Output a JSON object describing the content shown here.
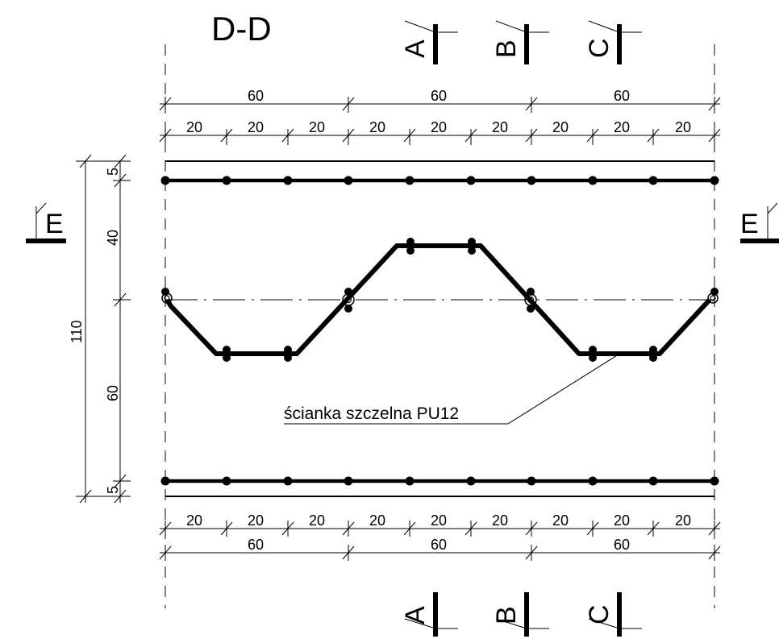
{
  "title": "D-D",
  "section_markers": {
    "top": [
      "A",
      "B",
      "C"
    ],
    "bottom": [
      "A",
      "B",
      "C"
    ],
    "left": "E",
    "right": "E"
  },
  "dimensions": {
    "top_major": [
      "60",
      "60",
      "60"
    ],
    "top_minor": [
      "20",
      "20",
      "20",
      "20",
      "20",
      "20",
      "20",
      "20",
      "20"
    ],
    "bottom_minor": [
      "20",
      "20",
      "20",
      "20",
      "20",
      "20",
      "20",
      "20",
      "20"
    ],
    "bottom_major": [
      "60",
      "60",
      "60"
    ],
    "vertical": [
      "5",
      "40",
      "60",
      "5"
    ],
    "vertical_total": "110"
  },
  "label": "ścianka szczelna PU12",
  "colors": {
    "ink": "#000000",
    "background": "#ffffff"
  }
}
